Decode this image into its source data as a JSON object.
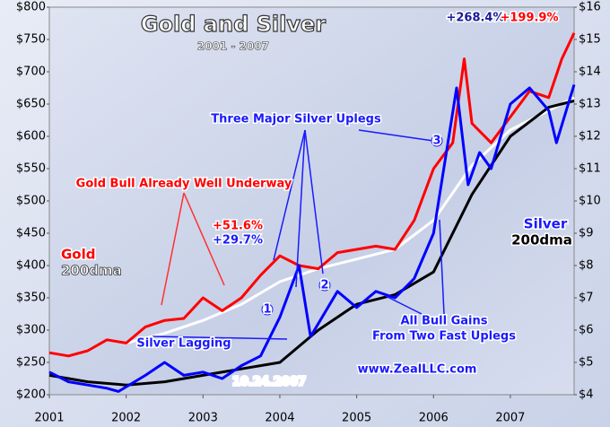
{
  "chart_data": {
    "type": "line",
    "title": "Gold and Silver",
    "subtitle": "2001 - 2007",
    "xlim": [
      2001,
      2007.83
    ],
    "xticks": [
      2001,
      2002,
      2003,
      2004,
      2005,
      2006,
      2007
    ],
    "ylim": [
      200,
      800
    ],
    "yticks": [
      {
        "value": 200,
        "label": "$200"
      },
      {
        "value": 250,
        "label": "$250"
      },
      {
        "value": 300,
        "label": "$300"
      },
      {
        "value": 350,
        "label": "$350"
      },
      {
        "value": 400,
        "label": "$400"
      },
      {
        "value": 450,
        "label": "$450"
      },
      {
        "value": 500,
        "label": "$500"
      },
      {
        "value": 550,
        "label": "$550"
      },
      {
        "value": 600,
        "label": "$600"
      },
      {
        "value": 650,
        "label": "$650"
      },
      {
        "value": 700,
        "label": "$700"
      },
      {
        "value": 750,
        "label": "$750"
      },
      {
        "value": 800,
        "label": "$800"
      }
    ],
    "y2lim": [
      4,
      16
    ],
    "y2ticks": [
      {
        "value": 4,
        "label": "$4"
      },
      {
        "value": 5,
        "label": "$5"
      },
      {
        "value": 6,
        "label": "$6"
      },
      {
        "value": 7,
        "label": "$7"
      },
      {
        "value": 8,
        "label": "$8"
      },
      {
        "value": 9,
        "label": "$9"
      },
      {
        "value": 10,
        "label": "$10"
      },
      {
        "value": 11,
        "label": "$11"
      },
      {
        "value": 12,
        "label": "$12"
      },
      {
        "value": 13,
        "label": "$13"
      },
      {
        "value": 14,
        "label": "$14"
      },
      {
        "value": 15,
        "label": "$15"
      },
      {
        "value": 16,
        "label": "$16"
      }
    ],
    "series": [
      {
        "name": "Gold",
        "color": "#ff0000",
        "x": [
          2001,
          2001.25,
          2001.5,
          2001.75,
          2002,
          2002.25,
          2002.5,
          2002.75,
          2003,
          2003.25,
          2003.5,
          2003.75,
          2004,
          2004.25,
          2004.5,
          2004.75,
          2005,
          2005.25,
          2005.5,
          2005.75,
          2006,
          2006.25,
          2006.4,
          2006.5,
          2006.75,
          2007,
          2007.25,
          2007.5,
          2007.67,
          2007.83
        ],
        "values": [
          265,
          260,
          268,
          285,
          280,
          305,
          315,
          318,
          350,
          330,
          350,
          385,
          415,
          400,
          395,
          420,
          425,
          430,
          425,
          470,
          550,
          590,
          720,
          620,
          590,
          630,
          670,
          660,
          720,
          760
        ]
      },
      {
        "name": "Silver",
        "color": "#0000ff",
        "axis": "y2",
        "x": [
          2001,
          2001.25,
          2001.5,
          2001.75,
          2001.9,
          2002.25,
          2002.5,
          2002.75,
          2003,
          2003.25,
          2003.5,
          2003.75,
          2004,
          2004.25,
          2004.4,
          2004.5,
          2004.75,
          2005,
          2005.25,
          2005.5,
          2005.75,
          2006,
          2006.3,
          2006.45,
          2006.6,
          2006.75,
          2007,
          2007.25,
          2007.5,
          2007.6,
          2007.83
        ],
        "values": [
          4.7,
          4.4,
          4.3,
          4.2,
          4.1,
          4.6,
          5.0,
          4.6,
          4.7,
          4.5,
          4.9,
          5.2,
          6.4,
          8.0,
          5.8,
          6.2,
          7.2,
          6.7,
          7.2,
          7.0,
          7.6,
          9.0,
          13.5,
          10.5,
          11.5,
          11.0,
          13.0,
          13.5,
          12.8,
          11.8,
          13.6
        ]
      },
      {
        "name": "200dma",
        "color": "#ffffff",
        "x": [
          2002,
          2002.5,
          2003,
          2003.5,
          2004,
          2004.5,
          2005,
          2005.5,
          2006,
          2006.5,
          2007,
          2007.5,
          2007.83
        ],
        "values": [
          280,
          295,
          315,
          340,
          375,
          395,
          410,
          425,
          470,
          555,
          610,
          640,
          660
        ]
      },
      {
        "name": "200dma",
        "color": "#000000",
        "axis": "y2",
        "x": [
          2001,
          2001.5,
          2002,
          2002.5,
          2003,
          2003.5,
          2004,
          2004.5,
          2005,
          2005.5,
          2006,
          2006.5,
          2007,
          2007.5,
          2007.83
        ],
        "values": [
          4.6,
          4.4,
          4.3,
          4.4,
          4.6,
          4.8,
          5.0,
          6.0,
          6.8,
          7.1,
          7.8,
          10.2,
          12.0,
          12.9,
          13.1
        ]
      }
    ],
    "annotations": [
      "+268.4%",
      "+199.9%",
      "Three Major Silver Uplegs",
      "Gold Bull Already Well Underway",
      "+51.6%",
      "+29.7%",
      "Silver Lagging",
      "All Bull Gains",
      "From Two Fast Uplegs",
      "www.ZealLLC.com",
      "10.24.2007",
      "1",
      "2",
      "3"
    ]
  }
}
